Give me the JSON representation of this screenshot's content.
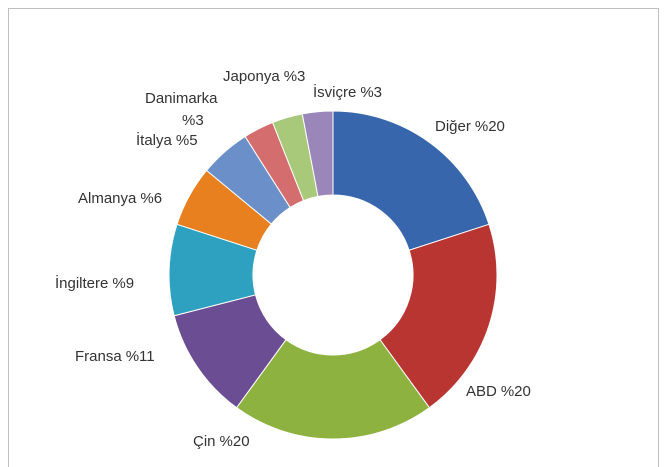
{
  "chart_data": {
    "type": "donut",
    "categories": [
      "Diğer",
      "ABD",
      "Çin",
      "Fransa",
      "İngiltere",
      "Almanya",
      "İtalya",
      "Danimarka",
      "Japonya",
      "İsviçre"
    ],
    "values": [
      20,
      20,
      20,
      11,
      9,
      6,
      5,
      3,
      3,
      3
    ],
    "value_labels": [
      "%20",
      "%20",
      "%20",
      "%11",
      "%9",
      "%6",
      "%5",
      "%3",
      "%3",
      "%3"
    ],
    "colors": [
      "#3866ad",
      "#b93532",
      "#8db23f",
      "#6b4d94",
      "#2fa1c0",
      "#e8801f",
      "#6b8fc9",
      "#d46e6e",
      "#a9c97a",
      "#9a86b9"
    ]
  }
}
